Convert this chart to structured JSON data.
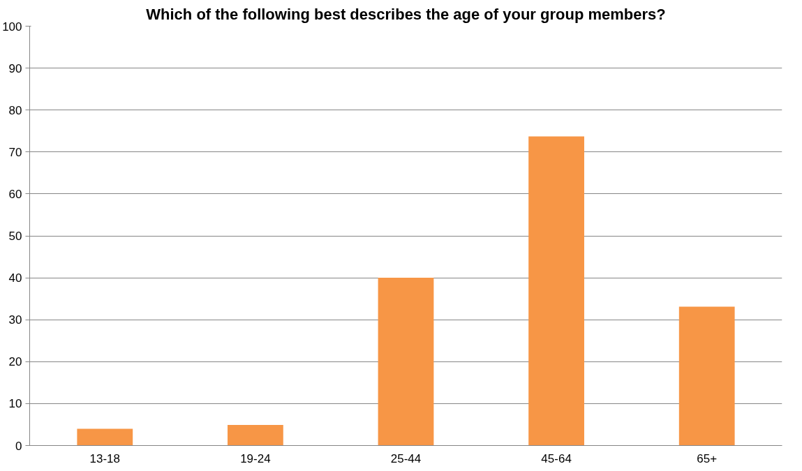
{
  "chart_data": {
    "type": "bar",
    "title": "Which of the following best describes the age of your group members?",
    "categories": [
      "13-18",
      "19-24",
      "25-44",
      "45-64",
      "65+"
    ],
    "values": [
      4,
      4.9,
      40,
      73.7,
      33.1
    ],
    "color": "#f79646",
    "ylim": [
      0,
      100
    ],
    "yticks": [
      0,
      10,
      20,
      30,
      40,
      50,
      60,
      70,
      80,
      90,
      100
    ],
    "grid": "y"
  }
}
